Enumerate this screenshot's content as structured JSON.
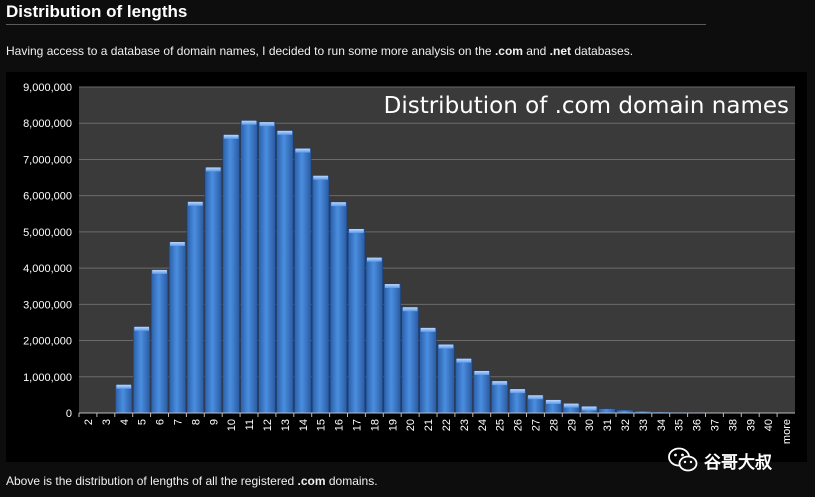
{
  "header": {
    "title": "Distribution of lengths"
  },
  "intro": {
    "text_before": "Having access to a database of domain names, I decided to run some more analysis on the ",
    "com": ".com",
    "and": " and ",
    "net": ".net",
    "text_after": " databases."
  },
  "footer": {
    "text_before": "Above is the distribution of lengths of all the registered ",
    "com": ".com",
    "text_after": " domains."
  },
  "watermark": {
    "text": "谷哥大叔",
    "icon": "wechat-icon"
  },
  "colors": {
    "bar": "#3a78c8",
    "plot_bg": "#3a3a3a",
    "grid": "#6a6a6a",
    "page_bg": "#0d0d0d"
  },
  "chart_data": {
    "type": "bar",
    "title": "Distribution of .com domain names",
    "xlabel": "",
    "ylabel": "",
    "ylim": [
      0,
      9000000
    ],
    "yticks": [
      "0",
      "1,000,000",
      "2,000,000",
      "3,000,000",
      "4,000,000",
      "5,000,000",
      "6,000,000",
      "7,000,000",
      "8,000,000",
      "9,000,000"
    ],
    "grid": true,
    "categories": [
      "2",
      "3",
      "4",
      "5",
      "6",
      "7",
      "8",
      "9",
      "10",
      "11",
      "12",
      "13",
      "14",
      "15",
      "16",
      "17",
      "18",
      "19",
      "20",
      "21",
      "22",
      "23",
      "24",
      "25",
      "26",
      "27",
      "28",
      "29",
      "30",
      "31",
      "32",
      "33",
      "34",
      "35",
      "36",
      "37",
      "38",
      "39",
      "40",
      "more"
    ],
    "values": [
      0,
      0,
      780000,
      2380000,
      3950000,
      4720000,
      5830000,
      6780000,
      7680000,
      8070000,
      8030000,
      7790000,
      7300000,
      6550000,
      5820000,
      5080000,
      4290000,
      3560000,
      2920000,
      2350000,
      1890000,
      1500000,
      1160000,
      880000,
      660000,
      490000,
      360000,
      260000,
      180000,
      120000,
      80000,
      50000,
      30000,
      15000,
      8000,
      4000,
      2000,
      1000,
      500,
      300
    ]
  }
}
